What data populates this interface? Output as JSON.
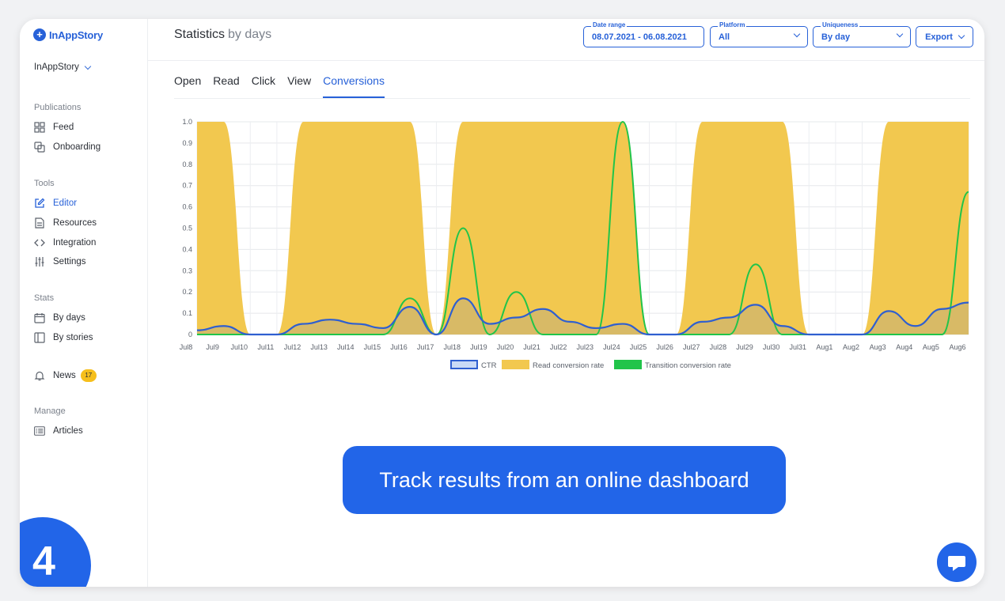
{
  "brand": {
    "name": "InAppStory",
    "accent": "#2761d8"
  },
  "workspace": {
    "name": "InAppStory"
  },
  "sidebar": {
    "sections": [
      {
        "title": "Publications",
        "items": [
          {
            "label": "Feed",
            "icon": "grid-icon"
          },
          {
            "label": "Onboarding",
            "icon": "copy-icon"
          }
        ]
      },
      {
        "title": "Tools",
        "items": [
          {
            "label": "Editor",
            "icon": "edit-icon",
            "active": true
          },
          {
            "label": "Resources",
            "icon": "file-icon"
          },
          {
            "label": "Integration",
            "icon": "code-icon"
          },
          {
            "label": "Settings",
            "icon": "sliders-icon"
          }
        ]
      },
      {
        "title": "Stats",
        "items": [
          {
            "label": "By days",
            "icon": "calendar-icon"
          },
          {
            "label": "By stories",
            "icon": "columns-icon"
          }
        ]
      },
      {
        "title": "",
        "items": [
          {
            "label": "News",
            "icon": "bell-icon",
            "badge": "17"
          }
        ]
      },
      {
        "title": "Manage",
        "items": [
          {
            "label": "Articles",
            "icon": "list-icon"
          }
        ]
      }
    ]
  },
  "header": {
    "title": "Statistics",
    "subtitle": "by days",
    "date_range": {
      "label": "Date range",
      "value": "08.07.2021 - 06.08.2021"
    },
    "platform": {
      "label": "Platform",
      "value": "All"
    },
    "uniqueness": {
      "label": "Uniqueness",
      "value": "By day"
    },
    "export_label": "Export"
  },
  "tabs": [
    "Open",
    "Read",
    "Click",
    "View",
    "Conversions"
  ],
  "active_tab": "Conversions",
  "step_number": "4",
  "cta_text": "Track results from an online dashboard",
  "chart_data": {
    "type": "area",
    "x": [
      "Jul8",
      "Jul9",
      "Jul10",
      "Jul11",
      "Jul12",
      "Jul13",
      "Jul14",
      "Jul15",
      "Jul16",
      "Jul17",
      "Jul18",
      "Jul19",
      "Jul20",
      "Jul21",
      "Jul22",
      "Jul23",
      "Jul24",
      "Jul25",
      "Jul26",
      "Jul27",
      "Jul28",
      "Jul29",
      "Jul30",
      "Jul31",
      "Aug1",
      "Aug2",
      "Aug3",
      "Aug4",
      "Aug5",
      "Aug6"
    ],
    "yticks": [
      "0",
      "0.1",
      "0.2",
      "0.3",
      "0.4",
      "0.5",
      "0.6",
      "0.7",
      "0.8",
      "0.9",
      "1.0"
    ],
    "ylim": [
      0,
      1
    ],
    "grid": true,
    "legend_position": "bottom",
    "series": [
      {
        "name": "CTR",
        "color": "#2f5fd0",
        "values": [
          0.02,
          0.04,
          0,
          0,
          0.05,
          0.07,
          0.05,
          0.03,
          0.13,
          0,
          0.17,
          0.05,
          0.08,
          0.12,
          0.06,
          0.03,
          0.05,
          0,
          0,
          0.06,
          0.08,
          0.14,
          0.04,
          0,
          0,
          0,
          0.11,
          0.04,
          0.12,
          0.15
        ]
      },
      {
        "name": "Read conversion rate",
        "color": "#f2c84f",
        "values": [
          1,
          1,
          0,
          0,
          1,
          1,
          1,
          1,
          1,
          0,
          1,
          1,
          1,
          1,
          1,
          1,
          1,
          0,
          0,
          1,
          1,
          1,
          1,
          0,
          0,
          0,
          1,
          1,
          1,
          1
        ]
      },
      {
        "name": "Transition conversion rate",
        "color": "#21c44a",
        "values": [
          0,
          0,
          0,
          0,
          0,
          0,
          0,
          0,
          0.17,
          0,
          0.5,
          0,
          0.2,
          0,
          0,
          0,
          1,
          0,
          0,
          0,
          0,
          0.33,
          0,
          0,
          0,
          0,
          0,
          0,
          0,
          0.67
        ]
      }
    ]
  }
}
